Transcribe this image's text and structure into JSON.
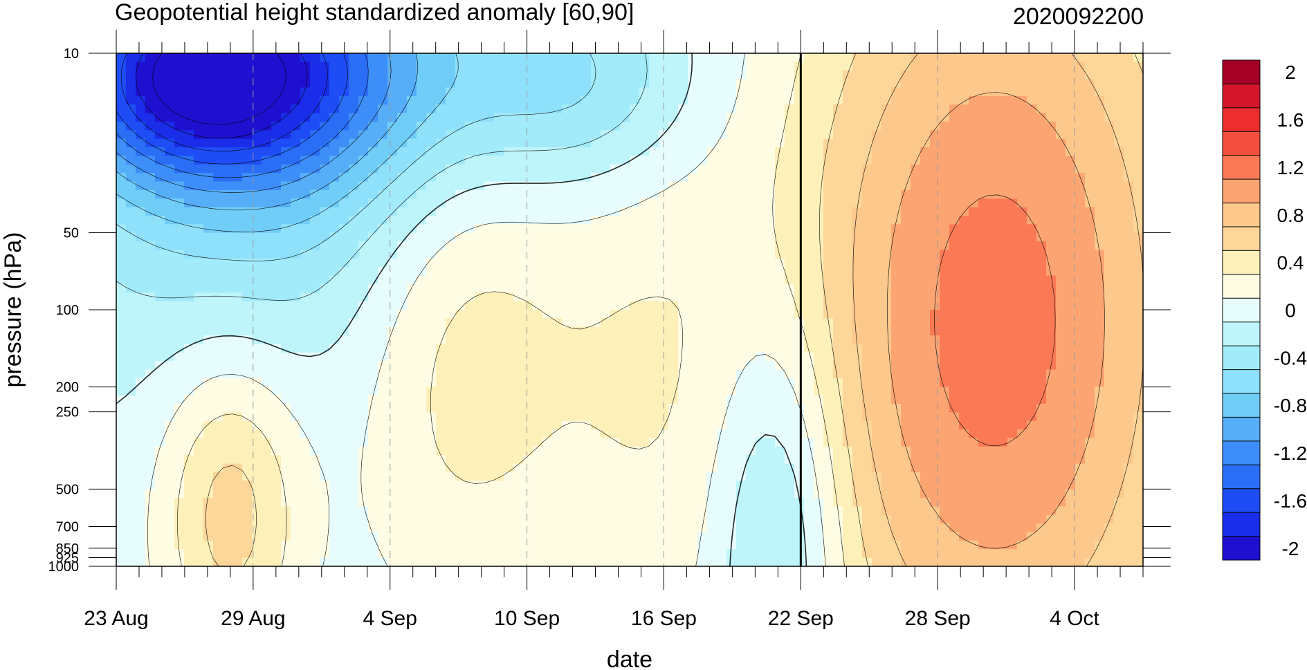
{
  "chart_data": {
    "type": "heatmap",
    "title": "Geopotential height standardized anomaly [60,90]",
    "subtitle": "2020092200",
    "xlabel": "date",
    "ylabel": "pressure (hPa)",
    "x_ticks": [
      "23 Aug",
      "29 Aug",
      "4 Sep",
      "10 Sep",
      "16 Sep",
      "22 Sep",
      "28 Sep",
      "4 Oct"
    ],
    "x_tick_days": [
      0,
      6,
      12,
      18,
      24,
      30,
      36,
      42
    ],
    "xlim_days": [
      0,
      45
    ],
    "y_ticks": [
      "10",
      "50",
      "100",
      "200",
      "250",
      "500",
      "700",
      "850",
      "925",
      "1000"
    ],
    "y_tick_values": [
      10,
      50,
      100,
      200,
      250,
      500,
      700,
      850,
      925,
      1000
    ],
    "ylim": [
      1000,
      10
    ],
    "y_scale": "log",
    "colorbar": {
      "labels": [
        "2",
        "1.6",
        "1.2",
        "0.8",
        "0.4",
        "0",
        "-0.4",
        "-0.8",
        "-1.2",
        "-1.6",
        "-2"
      ],
      "levels": [
        2.0,
        1.8,
        1.6,
        1.4,
        1.2,
        1.0,
        0.8,
        0.6,
        0.4,
        0.2,
        0.0,
        -0.2,
        -0.4,
        -0.6,
        -0.8,
        -1.0,
        -1.2,
        -1.4,
        -1.6,
        -1.8,
        -2.0
      ],
      "colors": [
        "#a50026",
        "#d3162c",
        "#ec2e2e",
        "#f34f3f",
        "#fb7a55",
        "#fca572",
        "#fcc88c",
        "#fdd69a",
        "#fdf0b8",
        "#fffce4",
        "#e6fcfd",
        "#bdf5fb",
        "#a2ebfb",
        "#8fe1fb",
        "#70cdf8",
        "#56adf8",
        "#3d8ef8",
        "#2a6ef6",
        "#1e4df5",
        "#1a2de8",
        "#1f10d0"
      ]
    },
    "analysis_date_marker": "22 Sep",
    "fill_levels": [
      -2.0,
      -1.8,
      -1.6,
      -1.4,
      -1.2,
      -1.0,
      -0.8,
      -0.6,
      -0.4,
      -0.2,
      0.0,
      0.2,
      0.4,
      0.6,
      0.8,
      1.0,
      1.2,
      1.4,
      1.6,
      1.8,
      2.0
    ],
    "fill_colors": [
      "#1f10d0",
      "#1a2de8",
      "#1e4df5",
      "#2a6ef6",
      "#3d8ef8",
      "#56adf8",
      "#70cdf8",
      "#8fe1fb",
      "#a2ebfb",
      "#bdf5fb",
      "#e6fcfd",
      "#fffce4",
      "#fdf0b8",
      "#fdd69a",
      "#fcc88c",
      "#fca572",
      "#fb7a55",
      "#f34f3f",
      "#ec2e2e",
      "#d3162c",
      "#a50026"
    ],
    "features": [
      {
        "x": 3,
        "p": 12,
        "amp": -1.55,
        "sx": 4.0,
        "sy": 0.28
      },
      {
        "x": 9,
        "p": 11,
        "amp": -0.9,
        "sx": 5.0,
        "sy": 0.35
      },
      {
        "x": 6,
        "p": 30,
        "amp": -0.5,
        "sx": 6.0,
        "sy": 0.55
      },
      {
        "x": 20,
        "p": 13,
        "amp": -0.55,
        "sx": 4.0,
        "sy": 0.3
      },
      {
        "x": 29,
        "p": 700,
        "amp": -0.6,
        "sx": 2.0,
        "sy": 0.6
      },
      {
        "x": 5,
        "p": 600,
        "amp": 0.65,
        "sx": 2.2,
        "sy": 0.45
      },
      {
        "x": 15,
        "p": 130,
        "amp": 0.45,
        "sx": 3.5,
        "sy": 0.75
      },
      {
        "x": 23,
        "p": 180,
        "amp": 0.28,
        "sx": 3.5,
        "sy": 0.8
      },
      {
        "x": 38.5,
        "p": 110,
        "amp": 1.25,
        "sx": 6.5,
        "sy": 1.2
      }
    ],
    "base_value": 0.05
  }
}
